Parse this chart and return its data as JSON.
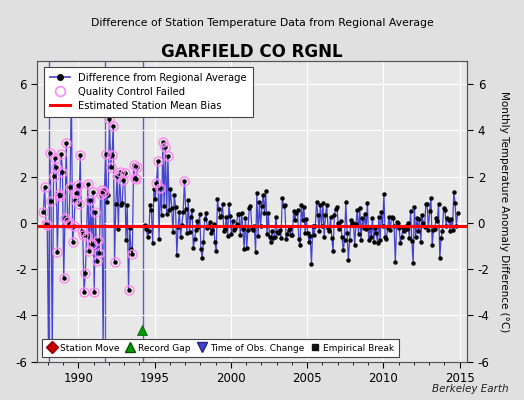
{
  "title": "GARFIELD CO RGNL",
  "subtitle": "Difference of Station Temperature Data from Regional Average",
  "ylabel": "Monthly Temperature Anomaly Difference (°C)",
  "xlabel_ticks": [
    1990,
    1995,
    2000,
    2005,
    2010,
    2015
  ],
  "ylim": [
    -6,
    7
  ],
  "yticks": [
    -6,
    -4,
    -2,
    0,
    2,
    4,
    6
  ],
  "xlim": [
    1987.3,
    2015.5
  ],
  "bias_line_y": -0.15,
  "bias_line_color": "#FF0000",
  "series_color": "#4444CC",
  "marker_color": "#000000",
  "qc_edge_color": "#FF88EE",
  "background_color": "#E0E0E0",
  "plot_bg_color": "#E8E8E8",
  "grid_color": "#FFFFFF",
  "watermark": "Berkeley Earth",
  "seed": 12345,
  "early_mean": 0.8,
  "early_std": 1.6,
  "mid_mean": 0.5,
  "mid_std": 1.2,
  "late_mean": -0.05,
  "late_std": 0.65,
  "gap_start": 1993.9,
  "gap_end": 1994.3,
  "figsize": [
    5.24,
    4.0
  ],
  "dpi": 100
}
